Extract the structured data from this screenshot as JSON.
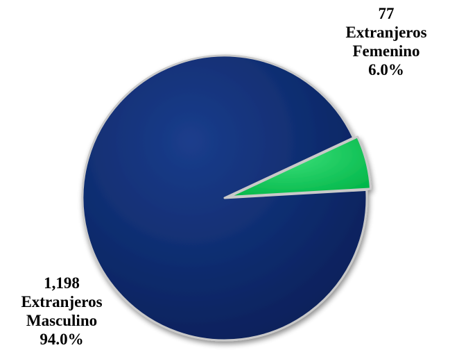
{
  "chart_data": {
    "type": "pie",
    "slices": [
      {
        "count": "77",
        "label_line1": "Extranjeros",
        "label_line2": "Femenino",
        "percent": "6.0%",
        "value": 77,
        "color": "#00C853"
      },
      {
        "count": "1,198",
        "label_line1": "Extranjeros",
        "label_line2": "Masculino",
        "percent": "94.0%",
        "value": 1198,
        "color": "#0D2A6B"
      }
    ],
    "start_angle_deg": 65
  }
}
